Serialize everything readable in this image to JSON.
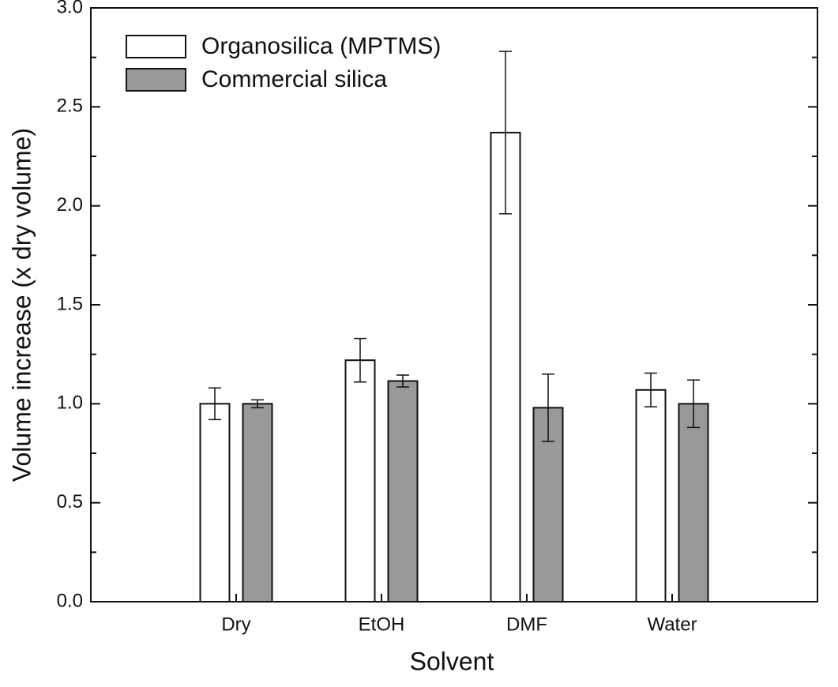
{
  "chart_data": {
    "type": "bar",
    "x_label": "Solvent",
    "y_label": "Volume increase (x dry volume)",
    "categories": [
      "Dry",
      "EtOH",
      "DMF",
      "Water"
    ],
    "series": [
      {
        "name": "Organosilica (MPTMS)",
        "color": "#ffffff",
        "values": [
          1.0,
          1.22,
          2.37,
          1.07
        ],
        "errors": [
          0.08,
          0.11,
          0.41,
          0.085
        ]
      },
      {
        "name": "Commercial silica",
        "color": "#999999",
        "values": [
          1.0,
          1.115,
          0.98,
          1.0
        ],
        "errors": [
          0.02,
          0.03,
          0.17,
          0.12
        ]
      }
    ],
    "ylim": [
      0,
      3
    ],
    "yticks": [
      {
        "value": 0,
        "label": "0.0"
      },
      0.5,
      {
        "value": 1,
        "label": "1.0"
      },
      1.5,
      {
        "value": 2,
        "label": "2.0"
      },
      2.5,
      {
        "value": 3,
        "label": "3.0"
      }
    ],
    "legend": "upper-left"
  }
}
